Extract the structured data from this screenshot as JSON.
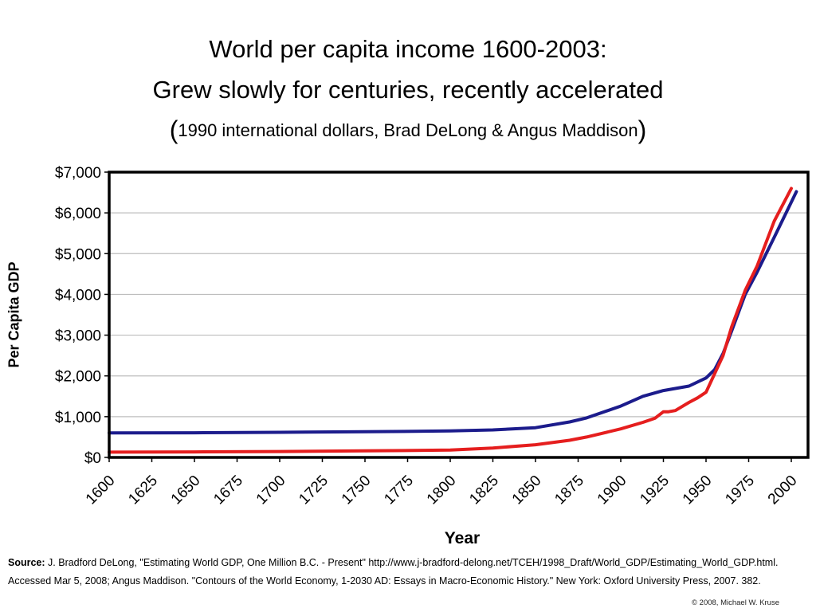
{
  "title_line1": "World per capita income 1600-2003:",
  "title_line2": "Grew slowly for centuries, recently accelerated",
  "title_line3": "1990 international dollars, Brad DeLong & Angus Maddison",
  "source_label": "Source:",
  "source_text": "J. Bradford DeLong, \"Estimating World GDP, One Million B.C. - Present\" http://www.j-bradford-delong.net/TCEH/1998_Draft/World_GDP/Estimating_World_GDP.html. Accessed Mar 5, 2008; Angus Maddison. \"Contours of the World Economy, 1-2030 AD: Essays in Macro-Economic History.\" New York: Oxford University Press, 2007. 382.",
  "copyright": "© 2008, Michael W. Kruse",
  "chart_data": {
    "type": "line",
    "xlabel": "Year",
    "ylabel": "Per Capita GDP",
    "xlim": [
      1600,
      2010
    ],
    "ylim": [
      0,
      7000
    ],
    "x_ticks": [
      1600,
      1625,
      1650,
      1675,
      1700,
      1725,
      1750,
      1775,
      1800,
      1825,
      1850,
      1875,
      1900,
      1925,
      1950,
      1975,
      2000
    ],
    "y_ticks": [
      0,
      1000,
      2000,
      3000,
      4000,
      5000,
      6000,
      7000
    ],
    "y_tick_labels": [
      "$0",
      "$1,000",
      "$2,000",
      "$3,000",
      "$4,000",
      "$5,000",
      "$6,000",
      "$7,000"
    ],
    "grid": "horizontal",
    "series": [
      {
        "color": "#1c1c8c",
        "x": [
          1600,
          1650,
          1700,
          1750,
          1800,
          1825,
          1850,
          1870,
          1880,
          1900,
          1913,
          1925,
          1940,
          1950,
          1955,
          1960,
          1965,
          1973,
          1980,
          1990,
          2003
        ],
        "y": [
          600,
          605,
          615,
          630,
          650,
          675,
          730,
          870,
          970,
          1260,
          1500,
          1640,
          1750,
          1950,
          2150,
          2550,
          3100,
          4000,
          4550,
          5400,
          6520
        ]
      },
      {
        "color": "#e51e1e",
        "x": [
          1600,
          1650,
          1700,
          1750,
          1800,
          1825,
          1850,
          1870,
          1880,
          1900,
          1913,
          1920,
          1925,
          1928,
          1932,
          1940,
          1945,
          1950,
          1955,
          1960,
          1965,
          1973,
          1980,
          1990,
          2000
        ],
        "y": [
          130,
          135,
          145,
          160,
          180,
          230,
          310,
          420,
          500,
          700,
          860,
          960,
          1120,
          1120,
          1150,
          1350,
          1460,
          1600,
          2050,
          2500,
          3200,
          4100,
          4700,
          5800,
          6600
        ]
      }
    ]
  }
}
